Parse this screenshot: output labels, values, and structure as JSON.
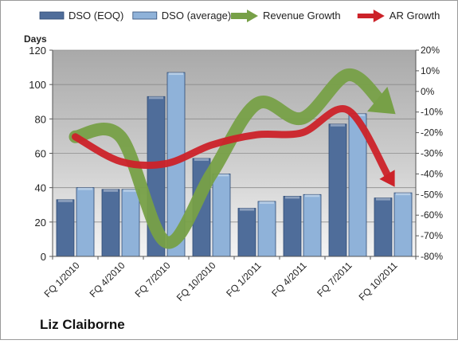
{
  "company": "Liz Claiborne",
  "chart_data": {
    "type": "bar",
    "title": "",
    "ylabel": "Days",
    "ylim": [
      0,
      120
    ],
    "y_ticks": [
      0,
      20,
      40,
      60,
      80,
      100,
      120
    ],
    "y2lim": [
      -80,
      20
    ],
    "y2_ticks": [
      20,
      10,
      0,
      -10,
      -20,
      -30,
      -40,
      -50,
      -60,
      -70,
      -80
    ],
    "y2_tick_labels": [
      "20%",
      "10%",
      "0%",
      "-10%",
      "-20%",
      "-30%",
      "-40%",
      "-50%",
      "-60%",
      "-70%",
      "-80%"
    ],
    "categories": [
      "FQ 1/2010",
      "FQ 4/2010",
      "FQ 7/2010",
      "FQ 10/2010",
      "FQ 1/2011",
      "FQ 4/2011",
      "FQ 7/2011",
      "FQ 10/2011"
    ],
    "bar_series": [
      {
        "name": "DSO (EOQ)",
        "color": "#4f6d9a",
        "values": [
          33,
          39,
          93,
          57,
          28,
          35,
          77,
          34
        ]
      },
      {
        "name": "DSO (average)",
        "color": "#8fb2d9",
        "values": [
          40,
          39,
          107,
          48,
          32,
          36,
          83,
          37
        ]
      }
    ],
    "line_series": [
      {
        "name": "Revenue Growth",
        "color": "#77a047",
        "axis": "right",
        "values": [
          -22,
          -22,
          -73,
          -40,
          -6,
          -13,
          8,
          -10
        ]
      },
      {
        "name": "AR Growth",
        "color": "#cc2229",
        "axis": "right",
        "values": [
          -22,
          -34,
          -35,
          -26,
          -21,
          -20,
          -9,
          -45
        ]
      }
    ],
    "grid": true,
    "legend_position": "top"
  }
}
